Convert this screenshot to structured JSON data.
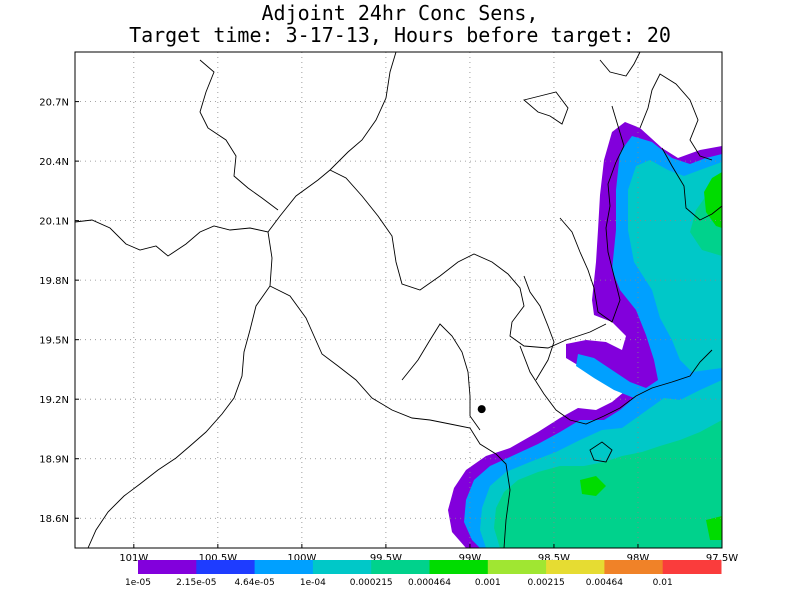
{
  "title": {
    "line1": "Adjoint 24hr Conc Sens,",
    "line2": "Target time: 3-17-13, Hours before target: 20"
  },
  "axes": {
    "y_ticks": [
      "20.7N",
      "20.4N",
      "20.1N",
      "19.8N",
      "19.5N",
      "19.2N",
      "18.9N",
      "18.6N"
    ],
    "x_ticks": [
      "101W",
      "100.5W",
      "100W",
      "99.5W",
      "99W",
      "98.5W",
      "98W",
      "97.5W"
    ],
    "lon_range": [
      -101.35,
      -97.5
    ],
    "lat_range": [
      18.45,
      20.95
    ],
    "grid": "dotted"
  },
  "marker": {
    "label": "target-point",
    "lon": -98.93,
    "lat": 19.15
  },
  "colorbar": {
    "labels": [
      "1e-05",
      "2.15e-05",
      "4.64e-05",
      "1e-04",
      "0.000215",
      "0.000464",
      "0.001",
      "0.00215",
      "0.00464",
      "0.01"
    ],
    "colors": [
      "#a000c8",
      "#8200dc",
      "#1e3cff",
      "#00a0ff",
      "#00c8c8",
      "#00d28c",
      "#00dc00",
      "#a0e632",
      "#e6dc32",
      "#f08228",
      "#fa3c3c",
      "#f00082"
    ]
  },
  "shading_colors": {
    "level1": "#8200dc",
    "level2": "#00a0ff",
    "level3": "#00c8c8",
    "level4": "#00d28c",
    "level5": "#00dc00"
  }
}
